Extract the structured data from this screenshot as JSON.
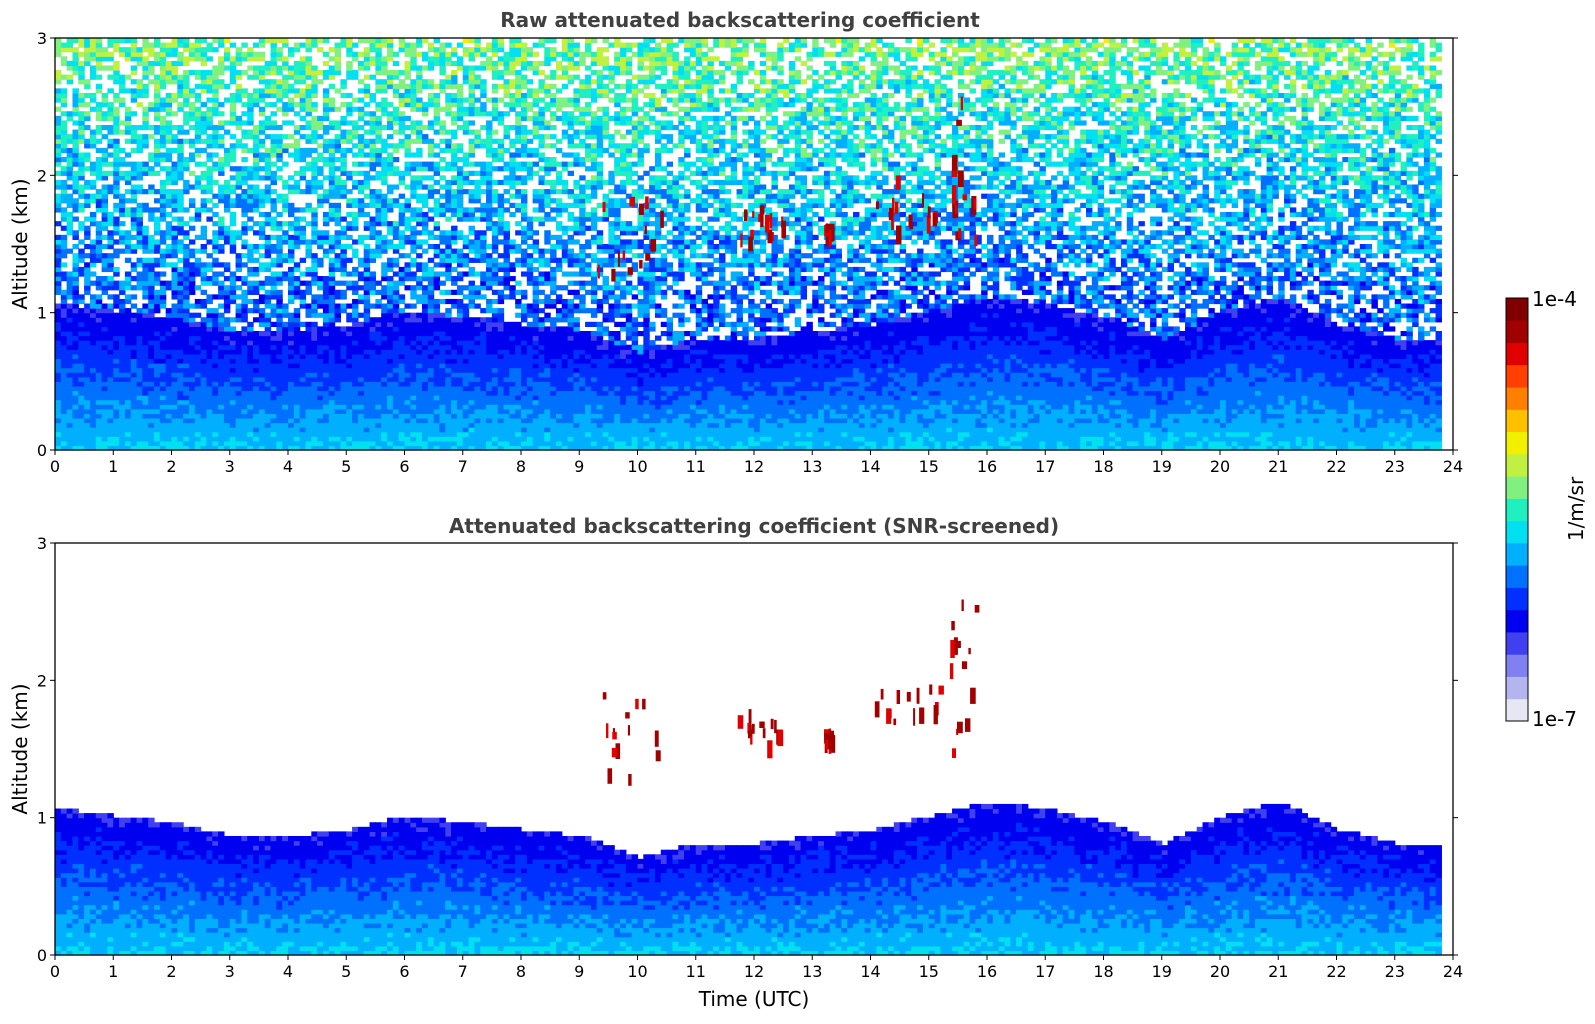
{
  "chart_data": [
    {
      "type": "heatmap",
      "title": "Raw attenuated backscattering coefficient",
      "xlabel": "",
      "ylabel": "Altitude (km)",
      "xlim": [
        0,
        24
      ],
      "ylim": [
        0,
        3
      ],
      "xticks": [
        "0",
        "1",
        "2",
        "3",
        "4",
        "5",
        "6",
        "7",
        "8",
        "9",
        "10",
        "11",
        "12",
        "13",
        "14",
        "15",
        "16",
        "17",
        "18",
        "19",
        "20",
        "21",
        "22",
        "23",
        "24"
      ],
      "yticks": [
        "0",
        "1",
        "2",
        "3"
      ],
      "data_end_time": 23.8,
      "field": "attenuated backscatter, log10 scale, noisy above boundary layer",
      "cloud_layers": [
        {
          "t_start": 9.3,
          "t_end": 10.4,
          "alt_km": [
            1.25,
            1.95
          ]
        },
        {
          "t_start": 11.7,
          "t_end": 12.5,
          "alt_km": [
            1.55,
            1.8
          ]
        },
        {
          "t_start": 13.2,
          "t_end": 13.3,
          "alt_km": [
            1.6,
            1.65
          ]
        },
        {
          "t_start": 14.0,
          "t_end": 15.2,
          "alt_km": [
            1.6,
            2.0
          ]
        },
        {
          "t_start": 15.3,
          "t_end": 15.8,
          "alt_km": [
            1.5,
            2.6
          ]
        }
      ]
    },
    {
      "type": "heatmap",
      "title": "Attenuated backscattering coefficient (SNR-screened)",
      "xlabel": "Time (UTC)",
      "ylabel": "Altitude (km)",
      "xlim": [
        0,
        24
      ],
      "ylim": [
        0,
        3
      ],
      "xticks": [
        "0",
        "1",
        "2",
        "3",
        "4",
        "5",
        "6",
        "7",
        "8",
        "9",
        "10",
        "11",
        "12",
        "13",
        "14",
        "15",
        "16",
        "17",
        "18",
        "19",
        "20",
        "21",
        "22",
        "23",
        "24"
      ],
      "yticks": [
        "0",
        "1",
        "2",
        "3"
      ],
      "data_end_time": 23.8,
      "field": "same as above with low-SNR pixels masked (white)",
      "screened_top_km_by_hour": [
        [
          0,
          1.05
        ],
        [
          2,
          0.95
        ],
        [
          3,
          0.85
        ],
        [
          4,
          0.85
        ],
        [
          5,
          0.9
        ],
        [
          6,
          1.0
        ],
        [
          7,
          0.95
        ],
        [
          8,
          0.9
        ],
        [
          9,
          0.85
        ],
        [
          10,
          0.7
        ],
        [
          11,
          0.8
        ],
        [
          12,
          0.8
        ],
        [
          13,
          0.85
        ],
        [
          14,
          0.9
        ],
        [
          15,
          1.0
        ],
        [
          16,
          1.1
        ],
        [
          17,
          1.05
        ],
        [
          18,
          0.95
        ],
        [
          19,
          0.8
        ],
        [
          20,
          1.0
        ],
        [
          21,
          1.1
        ],
        [
          22,
          0.9
        ],
        [
          23,
          0.8
        ],
        [
          23.8,
          0.8
        ]
      ]
    }
  ],
  "colorbar": {
    "max_label": "1e-4",
    "min_label": "1e-7",
    "unit_label": "1/m/sr",
    "colors": [
      "#e6e6f5",
      "#b4b4ef",
      "#8080f0",
      "#4040f0",
      "#0000f0",
      "#0030ff",
      "#0070ff",
      "#00b0ff",
      "#00e0f0",
      "#20f0c0",
      "#80f080",
      "#c0f040",
      "#f0f000",
      "#ffc000",
      "#ff8000",
      "#ff4000",
      "#e00000",
      "#a00000",
      "#800000"
    ]
  }
}
